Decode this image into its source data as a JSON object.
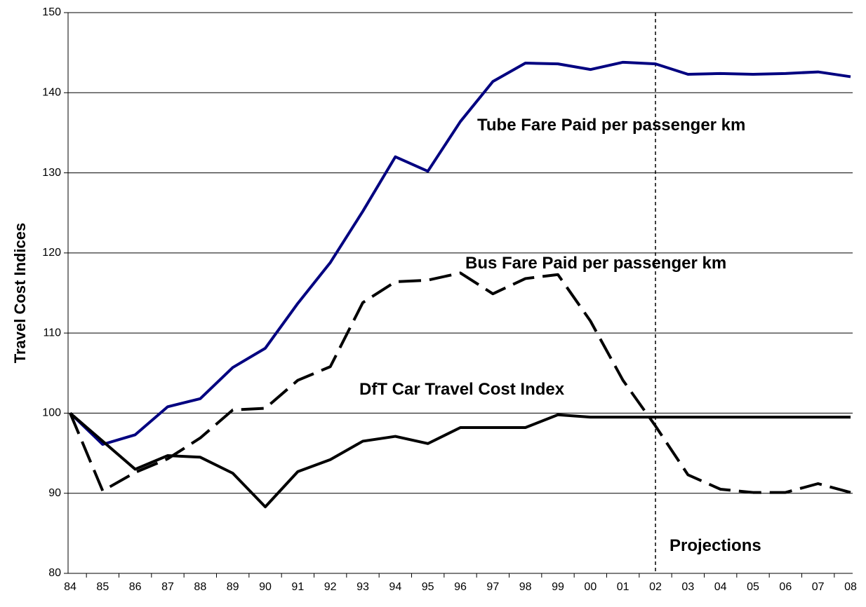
{
  "chart_data": {
    "type": "line",
    "y_label": "Travel Cost Indices",
    "categories": [
      "84",
      "85",
      "86",
      "87",
      "88",
      "89",
      "90",
      "91",
      "92",
      "93",
      "94",
      "95",
      "96",
      "97",
      "98",
      "99",
      "00",
      "01",
      "02",
      "03",
      "04",
      "05",
      "06",
      "07",
      "08"
    ],
    "series": [
      {
        "name": "Tube Fare Paid per passenger km",
        "color": "#000080",
        "dash": false,
        "values": [
          100,
          96.1,
          97.3,
          100.8,
          101.8,
          105.7,
          108.1,
          113.7,
          118.8,
          125.2,
          132.0,
          130.2,
          136.4,
          141.4,
          143.7,
          143.6,
          142.9,
          143.8,
          143.6,
          142.3,
          142.4,
          142.3,
          142.4,
          142.6,
          142.0
        ]
      },
      {
        "name": "Bus Fare Paid per passenger km",
        "color": "#000000",
        "dash": true,
        "values": [
          100,
          90.3,
          92.6,
          94.3,
          96.9,
          100.4,
          100.6,
          104.1,
          105.8,
          113.8,
          116.4,
          116.6,
          117.5,
          114.9,
          116.8,
          117.3,
          111.5,
          104.1,
          98.4,
          92.3,
          90.5,
          90.1,
          90.1,
          91.2,
          90.1
        ]
      },
      {
        "name": "DfT Car Travel Cost Index",
        "color": "#000000",
        "dash": false,
        "values": [
          100,
          96.5,
          93.0,
          94.7,
          94.5,
          92.5,
          88.3,
          92.7,
          94.2,
          96.5,
          97.1,
          96.2,
          98.2,
          98.2,
          98.2,
          99.8,
          99.5,
          99.5,
          99.5,
          99.5,
          99.5,
          99.5,
          99.5,
          99.5,
          99.5
        ]
      }
    ],
    "vline": "02",
    "vline_label": "Projections",
    "ylim": [
      80,
      150
    ],
    "yticks": [
      80,
      90,
      100,
      110,
      120,
      130,
      140,
      150
    ],
    "grid": true
  }
}
